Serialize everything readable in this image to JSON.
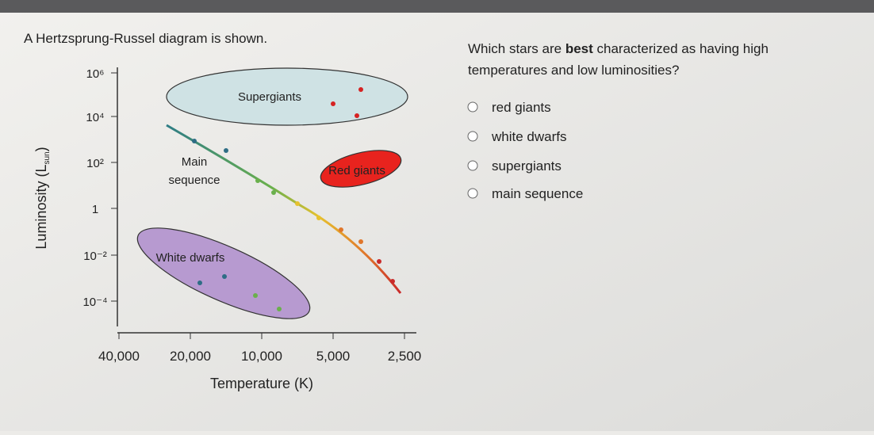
{
  "left_prompt": "A Hertzsprung-Russel diagram is shown.",
  "diagram": {
    "y_axis_label": {
      "text": "Luminosity (L",
      "subscript": "sun",
      "close": ")"
    },
    "y_ticks": [
      "10⁶",
      "10⁴",
      "10²",
      "1",
      "10⁻²",
      "10⁻⁴"
    ],
    "x_ticks": [
      "40,000",
      "20,000",
      "10,000",
      "5,000",
      "2,500"
    ],
    "x_axis_label": "Temperature (K)",
    "regions": {
      "supergiants": "Supergiants",
      "main_sequence": [
        "Main",
        "sequence"
      ],
      "red_giants": "Red giants",
      "white_dwarfs": "White dwarfs"
    }
  },
  "question": {
    "before": "Which stars are ",
    "emphasis": "best",
    "after": " characterized as having high",
    "line2": "temperatures and low luminosities?"
  },
  "options": [
    "red giants",
    "white dwarfs",
    "supergiants",
    "main sequence"
  ]
}
